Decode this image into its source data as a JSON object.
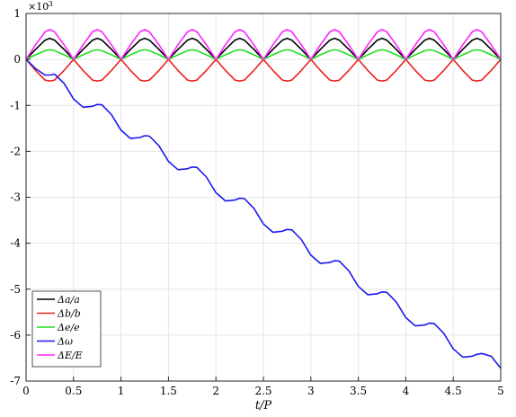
{
  "chart_data": {
    "type": "line",
    "xlabel": "t/P",
    "ylabel": "",
    "y_exponent_label": "×10",
    "y_exponent_power": "-3",
    "xlim": [
      0,
      5
    ],
    "ylim": [
      -7,
      1
    ],
    "x_ticks": [
      0,
      0.5,
      1,
      1.5,
      2,
      2.5,
      3,
      3.5,
      4,
      4.5,
      5
    ],
    "x_tick_labels": [
      "0",
      "0.5",
      "1",
      "1.5",
      "2",
      "2.5",
      "3",
      "3.5",
      "4",
      "4.5",
      "5"
    ],
    "y_ticks": [
      1,
      0,
      -1,
      -2,
      -3,
      -4,
      -5,
      -6,
      -7
    ],
    "y_tick_labels": [
      "1",
      "0",
      "-1",
      "-2",
      "-3",
      "-4",
      "-5",
      "-6",
      "-7"
    ],
    "grid": true,
    "legend_position": "bottom-left",
    "x": [
      0,
      0.1,
      0.2,
      0.25,
      0.3,
      0.4,
      0.5,
      0.6,
      0.7,
      0.75,
      0.8,
      0.9,
      1.0,
      1.1,
      1.2,
      1.25,
      1.3,
      1.4,
      1.5,
      1.6,
      1.7,
      1.75,
      1.8,
      1.9,
      2.0,
      2.1,
      2.2,
      2.25,
      2.3,
      2.4,
      2.5,
      2.6,
      2.7,
      2.75,
      2.8,
      2.9,
      3.0,
      3.1,
      3.2,
      3.25,
      3.3,
      3.4,
      3.5,
      3.6,
      3.7,
      3.75,
      3.8,
      3.9,
      4.0,
      4.1,
      4.2,
      4.25,
      4.3,
      4.4,
      4.5,
      4.6,
      4.7,
      4.75,
      4.8,
      4.9,
      5.0
    ],
    "series": [
      {
        "name": "Δa/a",
        "color": "#000000",
        "values": [
          0,
          0.22,
          0.42,
          0.46,
          0.42,
          0.22,
          0,
          0.22,
          0.42,
          0.46,
          0.42,
          0.22,
          0,
          0.22,
          0.42,
          0.46,
          0.42,
          0.22,
          0,
          0.22,
          0.42,
          0.46,
          0.42,
          0.22,
          0,
          0.22,
          0.42,
          0.46,
          0.42,
          0.22,
          0,
          0.22,
          0.42,
          0.46,
          0.42,
          0.22,
          0,
          0.22,
          0.42,
          0.46,
          0.42,
          0.22,
          0,
          0.22,
          0.42,
          0.46,
          0.42,
          0.22,
          0,
          0.22,
          0.42,
          0.46,
          0.42,
          0.22,
          0,
          0.22,
          0.42,
          0.46,
          0.42,
          0.22,
          0
        ]
      },
      {
        "name": "Δb/b",
        "color": "#e8201c",
        "values": [
          0,
          -0.24,
          -0.45,
          -0.47,
          -0.45,
          -0.24,
          0,
          -0.24,
          -0.45,
          -0.47,
          -0.45,
          -0.24,
          0,
          -0.24,
          -0.45,
          -0.47,
          -0.45,
          -0.24,
          0,
          -0.24,
          -0.45,
          -0.47,
          -0.45,
          -0.24,
          0,
          -0.24,
          -0.45,
          -0.47,
          -0.45,
          -0.24,
          0,
          -0.24,
          -0.45,
          -0.47,
          -0.45,
          -0.24,
          0,
          -0.24,
          -0.45,
          -0.47,
          -0.45,
          -0.24,
          0,
          -0.24,
          -0.45,
          -0.47,
          -0.45,
          -0.24,
          0,
          -0.24,
          -0.45,
          -0.47,
          -0.45,
          -0.24,
          0,
          -0.24,
          -0.45,
          -0.47,
          -0.45,
          -0.24,
          0
        ]
      },
      {
        "name": "Δe/e",
        "color": "#22dd22",
        "values": [
          0,
          0.1,
          0.19,
          0.21,
          0.19,
          0.1,
          0,
          0.1,
          0.19,
          0.21,
          0.19,
          0.1,
          0,
          0.1,
          0.19,
          0.21,
          0.19,
          0.1,
          0,
          0.1,
          0.19,
          0.21,
          0.19,
          0.1,
          0,
          0.1,
          0.19,
          0.21,
          0.19,
          0.1,
          0,
          0.1,
          0.19,
          0.21,
          0.19,
          0.1,
          0,
          0.1,
          0.19,
          0.21,
          0.19,
          0.1,
          0,
          0.1,
          0.19,
          0.21,
          0.19,
          0.1,
          0,
          0.1,
          0.19,
          0.21,
          0.19,
          0.1,
          0,
          0.1,
          0.19,
          0.21,
          0.19,
          0.1,
          0
        ]
      },
      {
        "name": "Δω",
        "color": "#1a1aee",
        "values": [
          0,
          -0.2,
          -0.34,
          -0.34,
          -0.32,
          -0.52,
          -0.86,
          -1.04,
          -1.02,
          -0.98,
          -0.99,
          -1.2,
          -1.54,
          -1.72,
          -1.7,
          -1.66,
          -1.67,
          -1.88,
          -2.22,
          -2.4,
          -2.38,
          -2.34,
          -2.35,
          -2.56,
          -2.9,
          -3.08,
          -3.06,
          -3.02,
          -3.03,
          -3.24,
          -3.58,
          -3.76,
          -3.74,
          -3.7,
          -3.71,
          -3.92,
          -4.26,
          -4.44,
          -4.42,
          -4.38,
          -4.39,
          -4.6,
          -4.94,
          -5.12,
          -5.1,
          -5.06,
          -5.07,
          -5.28,
          -5.62,
          -5.8,
          -5.78,
          -5.74,
          -5.75,
          -5.96,
          -6.3,
          -6.48,
          -6.46,
          -6.42,
          -6.4,
          -6.46,
          -6.72
        ]
      },
      {
        "name": "ΔE/E",
        "color": "#ff22ff",
        "values": [
          0,
          0.32,
          0.6,
          0.65,
          0.6,
          0.32,
          0,
          0.32,
          0.6,
          0.65,
          0.6,
          0.32,
          0,
          0.32,
          0.6,
          0.65,
          0.6,
          0.32,
          0,
          0.32,
          0.6,
          0.65,
          0.6,
          0.32,
          0,
          0.32,
          0.6,
          0.65,
          0.6,
          0.32,
          0,
          0.32,
          0.6,
          0.65,
          0.6,
          0.32,
          0,
          0.32,
          0.6,
          0.65,
          0.6,
          0.32,
          0,
          0.32,
          0.6,
          0.65,
          0.6,
          0.32,
          0,
          0.32,
          0.6,
          0.65,
          0.6,
          0.32,
          0,
          0.32,
          0.6,
          0.65,
          0.6,
          0.32,
          0
        ]
      }
    ]
  }
}
